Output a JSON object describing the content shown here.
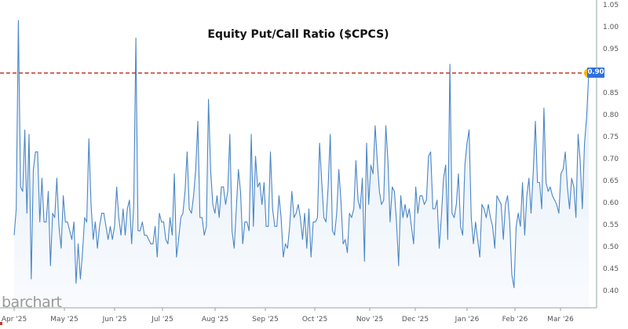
{
  "header": {
    "title": "Equity Put/Call Ratio ($CPCS)",
    "logo": "barchart"
  },
  "reference_line": {
    "value": 0.9,
    "label": "0.90",
    "color": "#c0392b",
    "style": "dashed"
  },
  "last_value_badge": {
    "label": "0.90",
    "color": "#2f6fe0"
  },
  "highlight_marker": {
    "color": "#f5b800"
  },
  "colors": {
    "line": "#4a86c5",
    "fill_top": "#d6e6f7",
    "fill_bottom": "#f4f8fd",
    "axis": "#8fa89a"
  },
  "y_axis": {
    "ticks": [
      "1.05",
      "1.00",
      "0.95",
      "0.90",
      "0.85",
      "0.80",
      "0.75",
      "0.70",
      "0.65",
      "0.60",
      "0.55",
      "0.50",
      "0.45",
      "0.40"
    ]
  },
  "x_axis": {
    "ticks": [
      "Apr '25",
      "May '25",
      "Jun '25",
      "Jul '25",
      "Aug '25",
      "Sep '25",
      "Oct '25",
      "Nov '25",
      "Dec '25",
      "Jan '26",
      "Feb '26",
      "Mar '26"
    ]
  },
  "chart_data": {
    "type": "line",
    "title": "Equity Put/Call Ratio ($CPCS)",
    "xlabel": "",
    "ylabel": "",
    "ylim": [
      0.38,
      1.07
    ],
    "grid": false,
    "legend": null,
    "x_ticks": [
      "Apr '25",
      "May '25",
      "Jun '25",
      "Jul '25",
      "Aug '25",
      "Sep '25",
      "Oct '25",
      "Nov '25",
      "Dec '25",
      "Jan '26",
      "Feb '26",
      "Mar '26"
    ],
    "y_ticks": [
      1.05,
      1.0,
      0.95,
      0.9,
      0.85,
      0.8,
      0.75,
      0.7,
      0.65,
      0.6,
      0.55,
      0.5,
      0.45,
      0.4
    ],
    "annotations": [
      {
        "type": "hline",
        "y": 0.9,
        "style": "dashed red",
        "label": "0.90"
      },
      {
        "type": "marker",
        "point": "last",
        "y": 0.9,
        "color": "#f5b800"
      }
    ],
    "series": [
      {
        "name": "$CPCS",
        "values": [
          0.53,
          0.59,
          1.02,
          0.64,
          0.63,
          0.77,
          0.58,
          0.76,
          0.43,
          0.68,
          0.72,
          0.72,
          0.56,
          0.66,
          0.56,
          0.56,
          0.63,
          0.46,
          0.58,
          0.57,
          0.66,
          0.55,
          0.5,
          0.62,
          0.56,
          0.56,
          0.54,
          0.52,
          0.56,
          0.42,
          0.51,
          0.43,
          0.49,
          0.57,
          0.56,
          0.75,
          0.6,
          0.52,
          0.56,
          0.5,
          0.55,
          0.58,
          0.58,
          0.55,
          0.52,
          0.55,
          0.52,
          0.55,
          0.64,
          0.57,
          0.53,
          0.59,
          0.53,
          0.59,
          0.61,
          0.51,
          0.6,
          0.98,
          0.54,
          0.54,
          0.56,
          0.53,
          0.53,
          0.52,
          0.51,
          0.51,
          0.55,
          0.48,
          0.58,
          0.56,
          0.56,
          0.52,
          0.51,
          0.57,
          0.53,
          0.67,
          0.48,
          0.52,
          0.57,
          0.58,
          0.63,
          0.72,
          0.59,
          0.58,
          0.62,
          0.68,
          0.79,
          0.57,
          0.57,
          0.53,
          0.55,
          0.84,
          0.68,
          0.6,
          0.58,
          0.62,
          0.57,
          0.64,
          0.64,
          0.6,
          0.63,
          0.76,
          0.54,
          0.5,
          0.59,
          0.68,
          0.63,
          0.51,
          0.56,
          0.56,
          0.54,
          0.76,
          0.55,
          0.71,
          0.64,
          0.65,
          0.6,
          0.65,
          0.55,
          0.55,
          0.72,
          0.59,
          0.55,
          0.55,
          0.62,
          0.57,
          0.48,
          0.51,
          0.5,
          0.55,
          0.63,
          0.57,
          0.58,
          0.6,
          0.57,
          0.52,
          0.58,
          0.5,
          0.59,
          0.48,
          0.56,
          0.56,
          0.57,
          0.74,
          0.65,
          0.57,
          0.56,
          0.64,
          0.76,
          0.54,
          0.53,
          0.58,
          0.68,
          0.61,
          0.51,
          0.52,
          0.49,
          0.58,
          0.57,
          0.59,
          0.7,
          0.61,
          0.59,
          0.66,
          0.47,
          0.74,
          0.6,
          0.69,
          0.67,
          0.78,
          0.7,
          0.63,
          0.6,
          0.61,
          0.78,
          0.7,
          0.56,
          0.64,
          0.63,
          0.56,
          0.46,
          0.62,
          0.57,
          0.6,
          0.57,
          0.59,
          0.55,
          0.51,
          0.64,
          0.58,
          0.62,
          0.62,
          0.6,
          0.61,
          0.71,
          0.72,
          0.59,
          0.59,
          0.61,
          0.5,
          0.57,
          0.66,
          0.69,
          0.52,
          0.92,
          0.58,
          0.57,
          0.6,
          0.67,
          0.55,
          0.53,
          0.69,
          0.74,
          0.77,
          0.57,
          0.51,
          0.56,
          0.52,
          0.48,
          0.6,
          0.59,
          0.57,
          0.6,
          0.57,
          0.55,
          0.5,
          0.62,
          0.61,
          0.6,
          0.52,
          0.6,
          0.62,
          0.56,
          0.44,
          0.41,
          0.55,
          0.58,
          0.55,
          0.65,
          0.53,
          0.62,
          0.66,
          0.58,
          0.67,
          0.79,
          0.65,
          0.65,
          0.59,
          0.82,
          0.65,
          0.63,
          0.64,
          0.62,
          0.61,
          0.6,
          0.58,
          0.67,
          0.68,
          0.72,
          0.64,
          0.59,
          0.66,
          0.64,
          0.57,
          0.76,
          0.7,
          0.59,
          0.74,
          0.8,
          0.9
        ]
      }
    ]
  }
}
